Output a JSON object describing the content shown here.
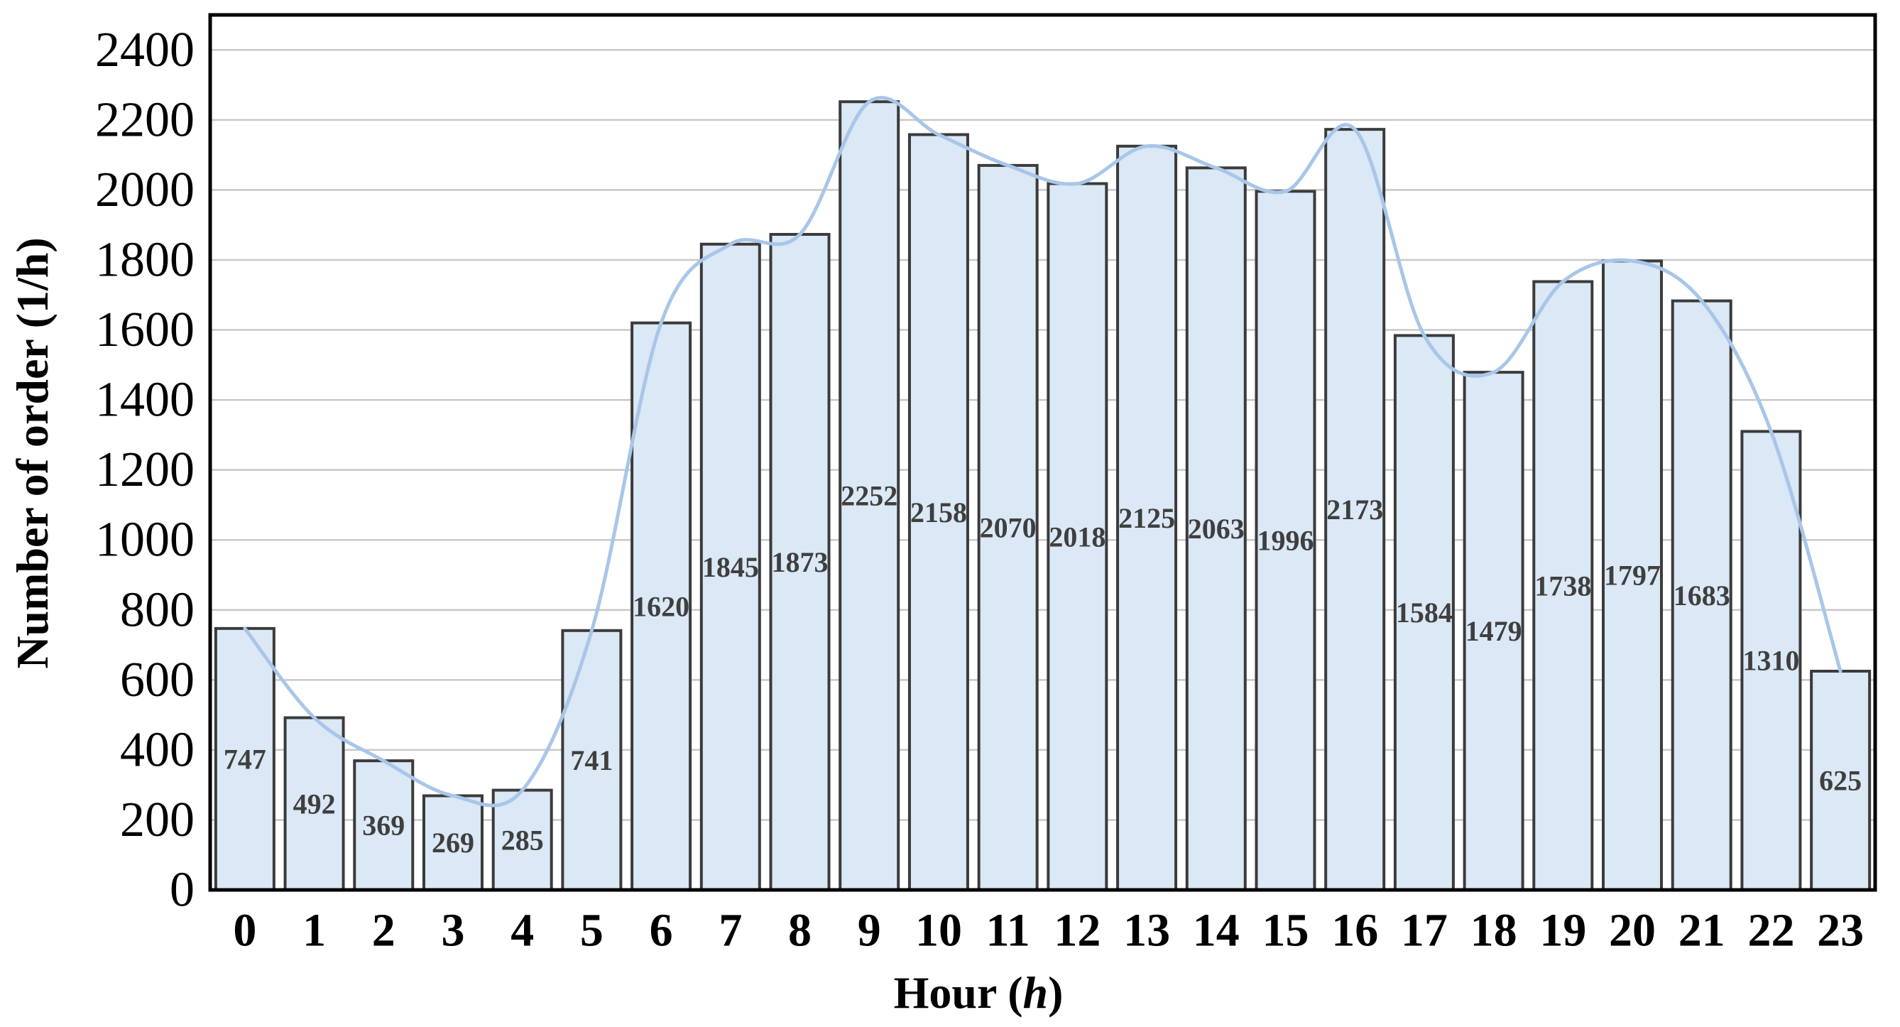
{
  "figure": {
    "ylabel": "Number of order (1/h)",
    "xlabel_prefix": "Hour (",
    "xlabel_var": "h",
    "xlabel_suffix": ")"
  },
  "chart_data": {
    "type": "bar",
    "title": "",
    "xlabel": "Hour (h)",
    "ylabel": "Number of order (1/h)",
    "categories": [
      "0",
      "1",
      "2",
      "3",
      "4",
      "5",
      "6",
      "7",
      "8",
      "9",
      "10",
      "11",
      "12",
      "13",
      "14",
      "15",
      "16",
      "17",
      "18",
      "19",
      "20",
      "21",
      "22",
      "23"
    ],
    "values": [
      747,
      492,
      369,
      269,
      285,
      741,
      1620,
      1845,
      1873,
      2252,
      2158,
      2070,
      2018,
      2125,
      2063,
      1996,
      2173,
      1584,
      1479,
      1738,
      1797,
      1683,
      1310,
      625
    ],
    "data_labels": "centered inside bars",
    "overlay_line": {
      "type": "smooth-spline",
      "description": "smoothed trend line passing through the top center of every bar",
      "uses_same_values_as_bars": true
    },
    "ylim": [
      0,
      2500
    ],
    "yticks": [
      0,
      200,
      400,
      600,
      800,
      1000,
      1200,
      1400,
      1600,
      1800,
      2000,
      2200,
      2400
    ],
    "grid": "horizontal",
    "legend": "none",
    "colors": {
      "bar_fill": "#dbe8f5",
      "bar_border": "#3b3b3b",
      "line": "#a8c6e9",
      "gridline": "#c8c8c8",
      "plot_border": "#000000",
      "data_label": "#3f3f3f",
      "tick_label": "#000000"
    }
  }
}
